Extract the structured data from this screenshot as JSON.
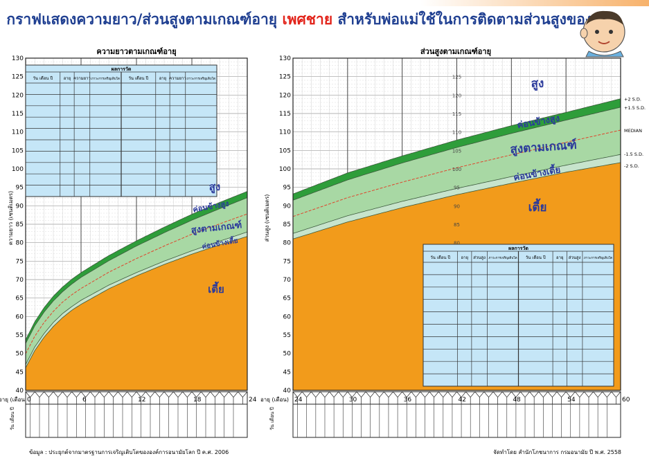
{
  "header": {
    "title_part1": "กราฟแสดงความยาว/ส่วนสูงตามเกณฑ์อายุ ",
    "title_accent": "เพศชาย",
    "title_part2": " สำหรับพ่อแม่ใช้ในการติดตามส่วนสูงของลูก",
    "accent_color": "#e2231a",
    "title_color": "#1f3f91",
    "mascot": "boy-face-illustration"
  },
  "footer": {
    "source": "ข้อมูล : ประยุกต์จากมาตรฐานการเจริญเติบโตขององค์การอนามัยโลก ปี ค.ศ. 2006",
    "publisher": "จัดทำโดย สำนักโภชนาการ กรมอนามัย ปี พ.ศ. 2558"
  },
  "colors": {
    "tall": "#2e9d3a",
    "rather_tall": "#2e9d3a",
    "normal": "#a8d8a4",
    "rather_short": "#c7e4cc",
    "short": "#f29b1b",
    "median_line": "#e0432a",
    "grid": "#b4b4b4",
    "table_bg": "#c5e6f7",
    "zone_label": "#2b3a9b"
  },
  "chart_data": [
    {
      "type": "area",
      "title": "ความยาวตามเกณฑ์อายุ",
      "ylabel": "ความยาว (เซนติเมตร)",
      "xlabel": "อายุ (เดือน)",
      "xlim": [
        0,
        24
      ],
      "ylim": [
        40,
        130
      ],
      "x_ticks": [
        0,
        6,
        12,
        18,
        24
      ],
      "y_ticks": [
        40,
        45,
        50,
        55,
        60,
        65,
        70,
        75,
        80,
        85,
        90,
        95,
        100,
        105,
        110,
        115,
        120,
        125,
        130
      ],
      "x": [
        0,
        1,
        2,
        3,
        4,
        5,
        6,
        9,
        12,
        15,
        18,
        21,
        24
      ],
      "series": [
        {
          "name": "+2 S.D.",
          "values": [
            53.7,
            58.6,
            62.4,
            65.5,
            68.0,
            70.1,
            71.9,
            76.5,
            80.5,
            84.2,
            87.7,
            90.9,
            93.9
          ]
        },
        {
          "name": "+1.5 S.D.",
          "values": [
            52.7,
            57.5,
            61.2,
            64.2,
            66.7,
            68.8,
            70.6,
            75.1,
            79.1,
            82.7,
            86.1,
            89.2,
            92.2
          ]
        },
        {
          "name": "MEDIAN",
          "values": [
            49.9,
            54.7,
            58.4,
            61.4,
            63.9,
            65.9,
            67.6,
            72.0,
            75.7,
            79.1,
            82.3,
            85.1,
            87.8
          ]
        },
        {
          "name": "-1.5 S.D.",
          "values": [
            47.0,
            51.8,
            55.4,
            58.4,
            60.8,
            62.7,
            64.4,
            68.5,
            71.9,
            75.0,
            77.8,
            80.4,
            82.9
          ]
        },
        {
          "name": "-2 S.D.",
          "values": [
            46.1,
            50.8,
            54.4,
            57.3,
            59.7,
            61.7,
            63.3,
            67.5,
            71.0,
            74.1,
            76.9,
            79.4,
            81.7
          ]
        }
      ],
      "zone_labels": [
        "สูง",
        "ค่อนข้างสูง",
        "สูงตามเกณฑ์",
        "ค่อนข้างเตี้ย",
        "เตี้ย"
      ],
      "grid": true,
      "record_table": {
        "header": "ผลการวัด",
        "columns": [
          "วัน เดือน ปี",
          "อายุ",
          "ความยาว",
          "ภาวะการเจริญเติบโต",
          "วัน เดือน ปี",
          "อายุ",
          "ความยาว",
          "ภาวะการเจริญเติบโต"
        ],
        "row_count": 10
      },
      "date_row_label": "วัน เดือน ปี"
    },
    {
      "type": "area",
      "title": "ส่วนสูงตามเกณฑ์อายุ",
      "ylabel": "ส่วนสูง (เซนติเมตร)",
      "xlabel": "อายุ (เดือน)",
      "xlim": [
        24,
        60
      ],
      "ylim": [
        40,
        130
      ],
      "x_ticks": [
        24,
        30,
        36,
        42,
        48,
        54,
        60
      ],
      "y_ticks": [
        40,
        45,
        50,
        55,
        60,
        65,
        70,
        75,
        80,
        85,
        90,
        95,
        100,
        105,
        110,
        115,
        120,
        125,
        130
      ],
      "inner_ruler_ticks": [
        80,
        85,
        90,
        95,
        100,
        105,
        110,
        115,
        120,
        125
      ],
      "x": [
        24,
        30,
        36,
        42,
        48,
        54,
        60
      ],
      "series": [
        {
          "name": "+2 S.D.",
          "values": [
            93.2,
            98.9,
            103.5,
            107.8,
            111.7,
            115.3,
            119.0
          ]
        },
        {
          "name": "+1.5 S.D.",
          "values": [
            91.5,
            97.0,
            101.6,
            105.8,
            109.6,
            113.2,
            116.7
          ]
        },
        {
          "name": "MEDIAN",
          "values": [
            87.1,
            92.2,
            96.4,
            100.3,
            103.8,
            107.2,
            110.5
          ]
        },
        {
          "name": "-1.5 S.D.",
          "values": [
            82.5,
            87.3,
            91.2,
            94.7,
            97.9,
            101.0,
            103.9
          ]
        },
        {
          "name": "-2 S.D.",
          "values": [
            81.0,
            85.6,
            89.5,
            93.0,
            96.1,
            99.1,
            101.7
          ]
        }
      ],
      "zone_labels": [
        "สูง",
        "ค่อนข้างสูง",
        "สูงตามเกณฑ์",
        "ค่อนข้างเตี้ย",
        "เตี้ย"
      ],
      "line_labels": [
        "+2 S.D.",
        "+1.5 S.D.",
        "MEDIAN",
        "-1.5 S.D.",
        "-2 S.D."
      ],
      "grid": true,
      "record_table": {
        "header": "ผลการวัด",
        "columns": [
          "วัน เดือน ปี",
          "อายุ",
          "ส่วนสูง",
          "ภาวะการเจริญเติบโต",
          "วัน เดือน ปี",
          "อายุ",
          "ส่วนสูง",
          "ภาวะการเจริญเติบโต"
        ],
        "row_count": 10
      },
      "date_row_label": "วัน เดือน ปี"
    }
  ]
}
